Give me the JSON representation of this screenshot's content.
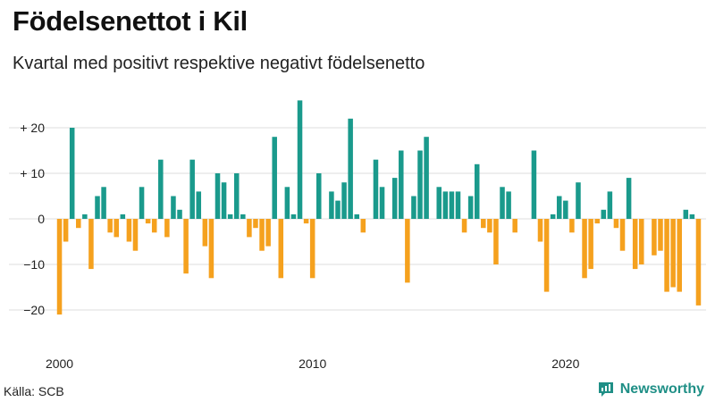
{
  "title": "Födelsenettot i Kil",
  "subtitle": "Kvartal med positivt respektive negativt födelsenetto",
  "source": "Källa: SCB",
  "brand": "Newsworthy",
  "colors": {
    "positive": "#1a9a8c",
    "negative": "#f5a11e",
    "grid": "#dddddd",
    "brand": "#1f8f86"
  },
  "icons": {
    "brand": "bar-chart-logo-icon"
  },
  "chart_data": {
    "type": "bar",
    "title": "Födelsenettot i Kil",
    "subtitle": "Kvartal med positivt respektive negativt födelsenetto",
    "xlabel": "",
    "ylabel": "",
    "x_start": "2000 Q1",
    "frequency": "quarterly",
    "ylim": [
      -24,
      28
    ],
    "y_ticks": [
      20,
      10,
      0,
      -10,
      -20
    ],
    "y_tick_labels": [
      "+ 20",
      "+ 10",
      "0",
      "−10",
      "−20"
    ],
    "x_ticks": [
      {
        "label": "2000",
        "index": 0
      },
      {
        "label": "2010",
        "index": 40
      },
      {
        "label": "2020",
        "index": 80
      }
    ],
    "grid": true,
    "values": [
      -21,
      -5,
      20,
      -2,
      1,
      -11,
      5,
      7,
      -3,
      -4,
      1,
      -5,
      -7,
      7,
      -1,
      -3,
      13,
      -4,
      5,
      2,
      -12,
      13,
      6,
      -6,
      -13,
      10,
      8,
      1,
      10,
      1,
      -4,
      -2,
      -7,
      -6,
      18,
      -13,
      7,
      1,
      26,
      -1,
      -13,
      10,
      0,
      6,
      4,
      8,
      22,
      1,
      -3,
      0,
      13,
      7,
      0,
      9,
      15,
      -14,
      5,
      15,
      18,
      0,
      7,
      6,
      6,
      6,
      -3,
      5,
      12,
      -2,
      -3,
      -10,
      7,
      6,
      -3,
      0,
      0,
      15,
      -5,
      -16,
      1,
      5,
      4,
      -3,
      8,
      -13,
      -11,
      -1,
      2,
      6,
      -2,
      -7,
      9,
      -11,
      -10,
      0,
      -8,
      -7,
      -16,
      -15,
      -16,
      2,
      1,
      -19
    ]
  }
}
